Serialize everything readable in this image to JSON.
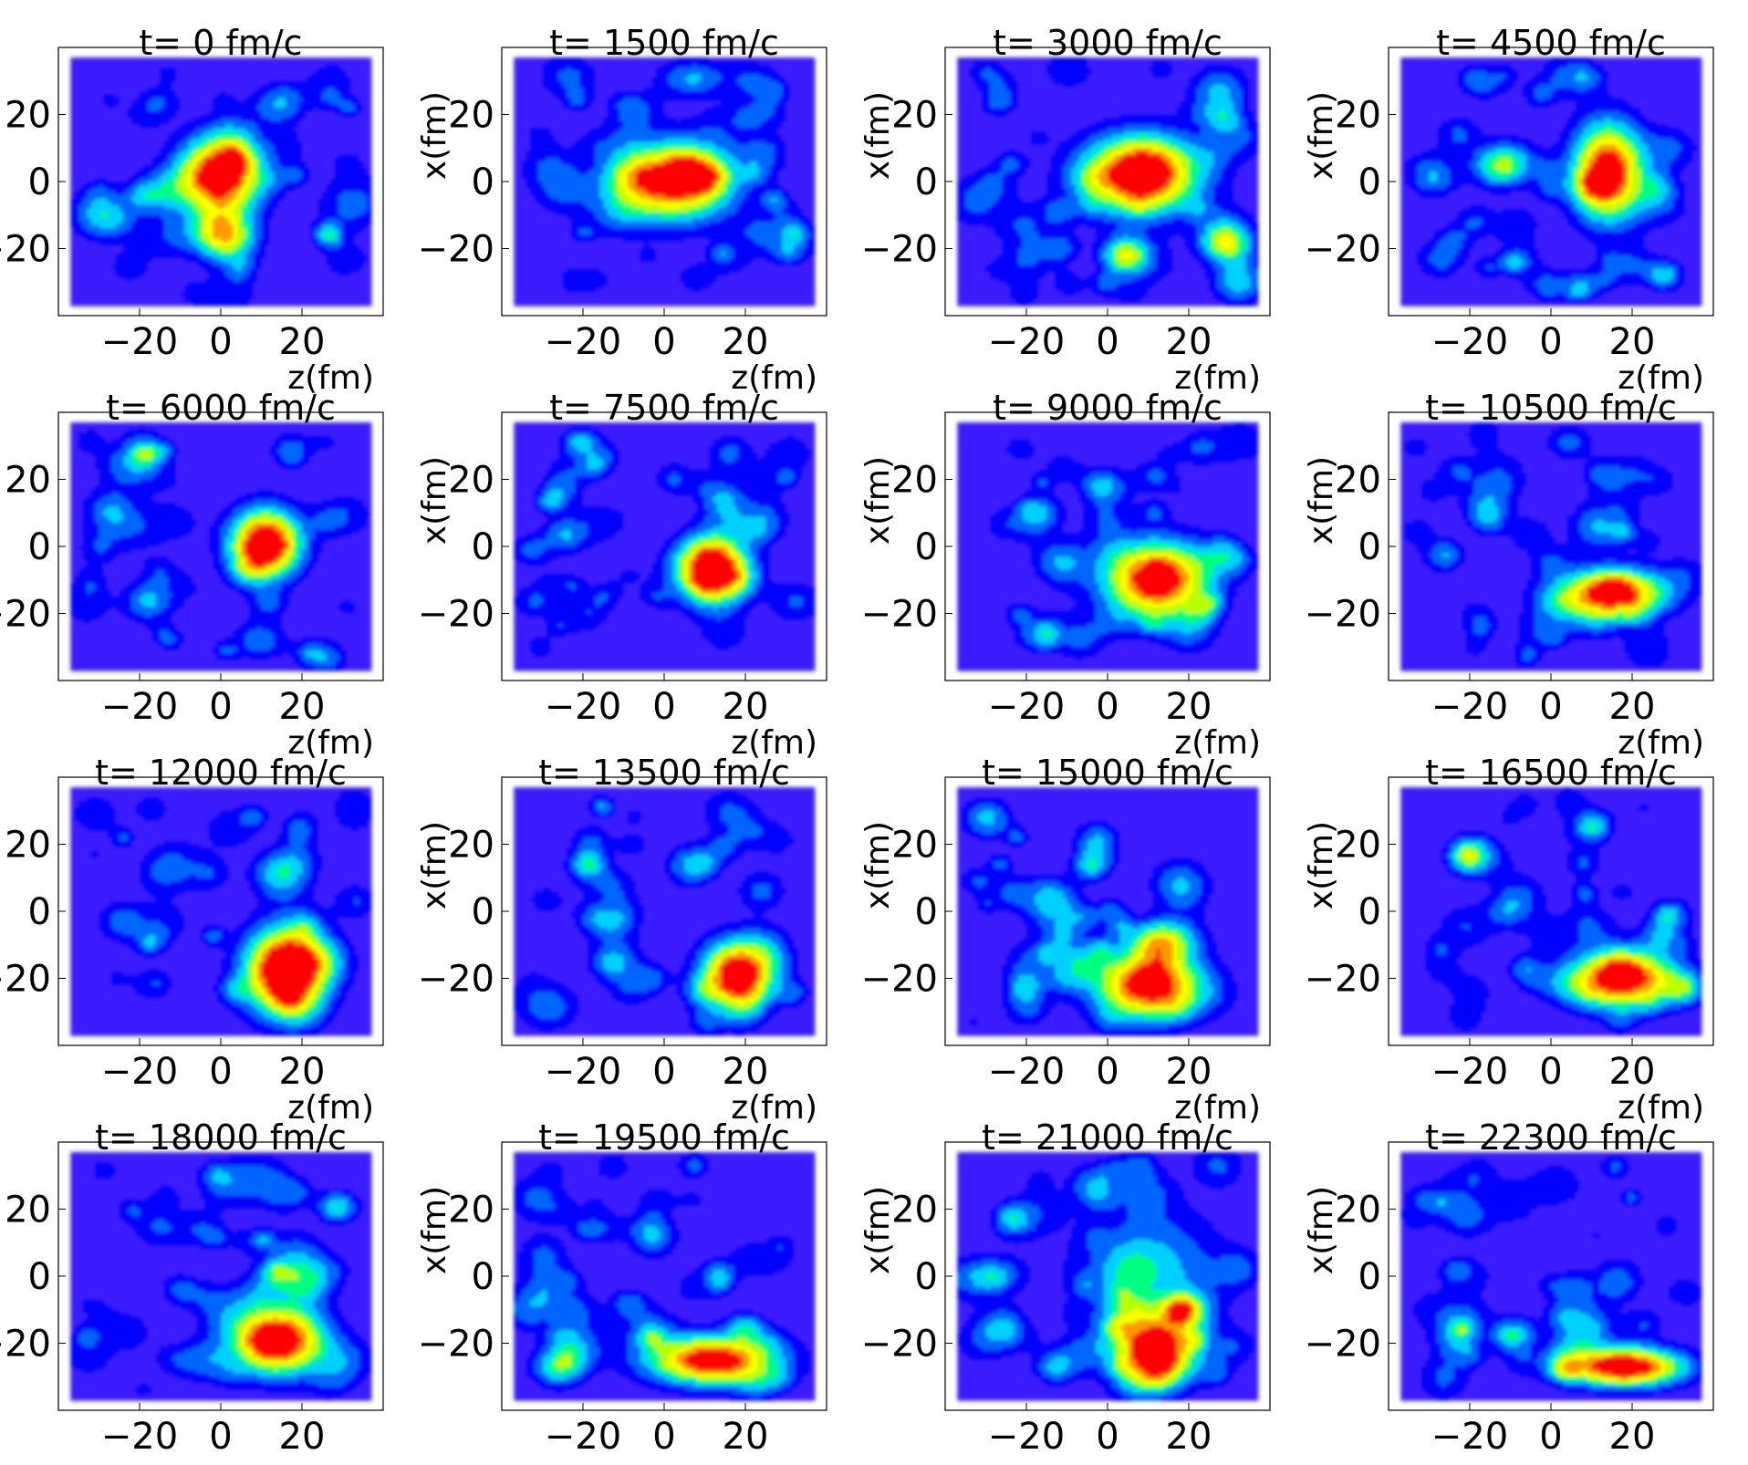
{
  "chart_data": {
    "type": "heatmap",
    "layout": "4x4 grid of density maps",
    "xlabel": "z(fm)",
    "ylabel": "x(fm)",
    "xticks": [
      -20,
      0,
      20
    ],
    "yticks": [
      20,
      0,
      -20
    ],
    "xlim": [
      -40,
      40
    ],
    "ylim": [
      -40,
      40
    ],
    "grid": false,
    "colormap": [
      "#6a00ff",
      "#3a1cff",
      "#0000ff",
      "#0066ff",
      "#00d0ff",
      "#00ff80",
      "#b8ff00",
      "#ffff00",
      "#ff9900",
      "#ff0000"
    ],
    "panels": [
      {
        "title": "t= 0 fm/c",
        "blobs": [
          {
            "z": 0,
            "x": 2,
            "sz": 7,
            "sx": 8,
            "amp": 1.0
          },
          {
            "z": 0,
            "x": -15,
            "sz": 5,
            "sx": 5,
            "amp": 0.55
          }
        ]
      },
      {
        "title": "t= 1500 fm/c",
        "blobs": [
          {
            "z": 2,
            "x": 0,
            "sz": 10,
            "sx": 8,
            "amp": 0.9
          },
          {
            "z": 10,
            "x": 2,
            "sz": 4,
            "sx": 4,
            "amp": 0.35
          }
        ]
      },
      {
        "title": "t= 3000 fm/c",
        "blobs": [
          {
            "z": 8,
            "x": 2,
            "sz": 10,
            "sx": 8,
            "amp": 1.0
          },
          {
            "z": 5,
            "x": -22,
            "sz": 4,
            "sx": 4,
            "amp": 0.45
          },
          {
            "z": 28,
            "x": -18,
            "sz": 4,
            "sx": 4,
            "amp": 0.4
          }
        ]
      },
      {
        "title": "t= 4500 fm/c",
        "blobs": [
          {
            "z": 14,
            "x": 3,
            "sz": 6,
            "sx": 10,
            "amp": 0.95
          },
          {
            "z": 28,
            "x": -28,
            "sz": 3,
            "sx": 3,
            "amp": 0.35
          }
        ]
      },
      {
        "title": "t= 6000 fm/c",
        "blobs": [
          {
            "z": 11,
            "x": 1,
            "sz": 6,
            "sx": 7,
            "amp": 1.0
          }
        ]
      },
      {
        "title": "t= 7500 fm/c",
        "blobs": [
          {
            "z": 12,
            "x": -7,
            "sz": 6,
            "sx": 7,
            "amp": 1.0
          }
        ]
      },
      {
        "title": "t= 9000 fm/c",
        "blobs": [
          {
            "z": 12,
            "x": -10,
            "sz": 9,
            "sx": 8,
            "amp": 0.95
          }
        ]
      },
      {
        "title": "t= 10500 fm/c",
        "blobs": [
          {
            "z": 15,
            "x": -14,
            "sz": 9,
            "sx": 5,
            "amp": 0.95
          }
        ]
      },
      {
        "title": "t= 12000 fm/c",
        "blobs": [
          {
            "z": 16,
            "x": -18,
            "sz": 7,
            "sx": 9,
            "amp": 1.0
          }
        ]
      },
      {
        "title": "t= 13500 fm/c",
        "blobs": [
          {
            "z": 18,
            "x": -19,
            "sz": 6,
            "sx": 7,
            "amp": 1.0
          }
        ]
      },
      {
        "title": "t= 15000 fm/c",
        "blobs": [
          {
            "z": 10,
            "x": -22,
            "sz": 9,
            "sx": 7,
            "amp": 0.95
          },
          {
            "z": 14,
            "x": -8,
            "sz": 6,
            "sx": 4,
            "amp": 0.4
          }
        ]
      },
      {
        "title": "t= 16500 fm/c",
        "blobs": [
          {
            "z": 18,
            "x": -20,
            "sz": 9,
            "sx": 6,
            "amp": 0.95
          }
        ]
      },
      {
        "title": "t= 18000 fm/c",
        "blobs": [
          {
            "z": 14,
            "x": -19,
            "sz": 8,
            "sx": 7,
            "amp": 1.0
          }
        ]
      },
      {
        "title": "t= 19500 fm/c",
        "blobs": [
          {
            "z": 12,
            "x": -25,
            "sz": 11,
            "sx": 5,
            "amp": 0.95
          },
          {
            "z": 20,
            "x": -15,
            "sz": 3,
            "sx": 3,
            "amp": 0.3
          }
        ]
      },
      {
        "title": "t= 21000 fm/c",
        "blobs": [
          {
            "z": 12,
            "x": -22,
            "sz": 7,
            "sx": 7,
            "amp": 0.95
          },
          {
            "z": 18,
            "x": -10,
            "sz": 3,
            "sx": 3,
            "amp": 0.5
          },
          {
            "z": 10,
            "x": 2,
            "sz": 12,
            "sx": 12,
            "amp": 0.35
          }
        ]
      },
      {
        "title": "t= 22300 fm/c",
        "blobs": [
          {
            "z": 18,
            "x": -27,
            "sz": 10,
            "sx": 4,
            "amp": 1.0
          },
          {
            "z": 8,
            "x": -15,
            "sz": 5,
            "sx": 5,
            "amp": 0.35
          }
        ]
      }
    ]
  }
}
